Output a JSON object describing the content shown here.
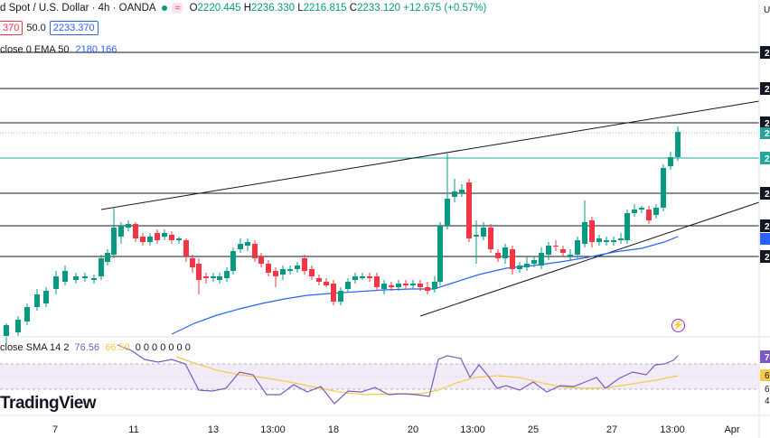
{
  "header": {
    "symbol": "d Spot / U.S. Dollar · 4h · OANDA",
    "status_badge": "≈",
    "ohlc": {
      "o_label": "O",
      "o": "2220.445",
      "h_label": "H",
      "h": "2236.330",
      "l_label": "L",
      "l": "2216.815",
      "c_label": "C",
      "c": "2233.120",
      "change": "+12.675 (+0.57%)"
    }
  },
  "order_row": {
    "sell_price": "370",
    "spread": "50.0",
    "buy_price": "2233.370"
  },
  "ema_indicator": {
    "label": "close 0 EMA 50",
    "value": "2180.166"
  },
  "rsi_indicator": {
    "label": "close SMA 14 2",
    "rsi_value": "76.56",
    "sma_value": "66.50",
    "extra_values": "0 0 0 0 0 0 0"
  },
  "logo": "TradingView",
  "x_axis": {
    "ticks": [
      "7",
      "11",
      "13",
      "13:00",
      "18",
      "20",
      "13:00",
      "25",
      "27",
      "13:00",
      "Apr"
    ]
  },
  "right_axis": {
    "top_label": "U",
    "price_tags": [
      "2",
      "2",
      "2",
      "2",
      "2",
      "2",
      "2",
      "2"
    ],
    "rsi_tags": [
      "7",
      "6",
      "6",
      "4"
    ]
  },
  "colors": {
    "up": "#089981",
    "down": "#f23645",
    "ema": "#2962ff",
    "rsi": "#7e57c2",
    "rsi_ma": "#f7c948"
  },
  "icons": {
    "flash": "lightning-icon"
  }
}
